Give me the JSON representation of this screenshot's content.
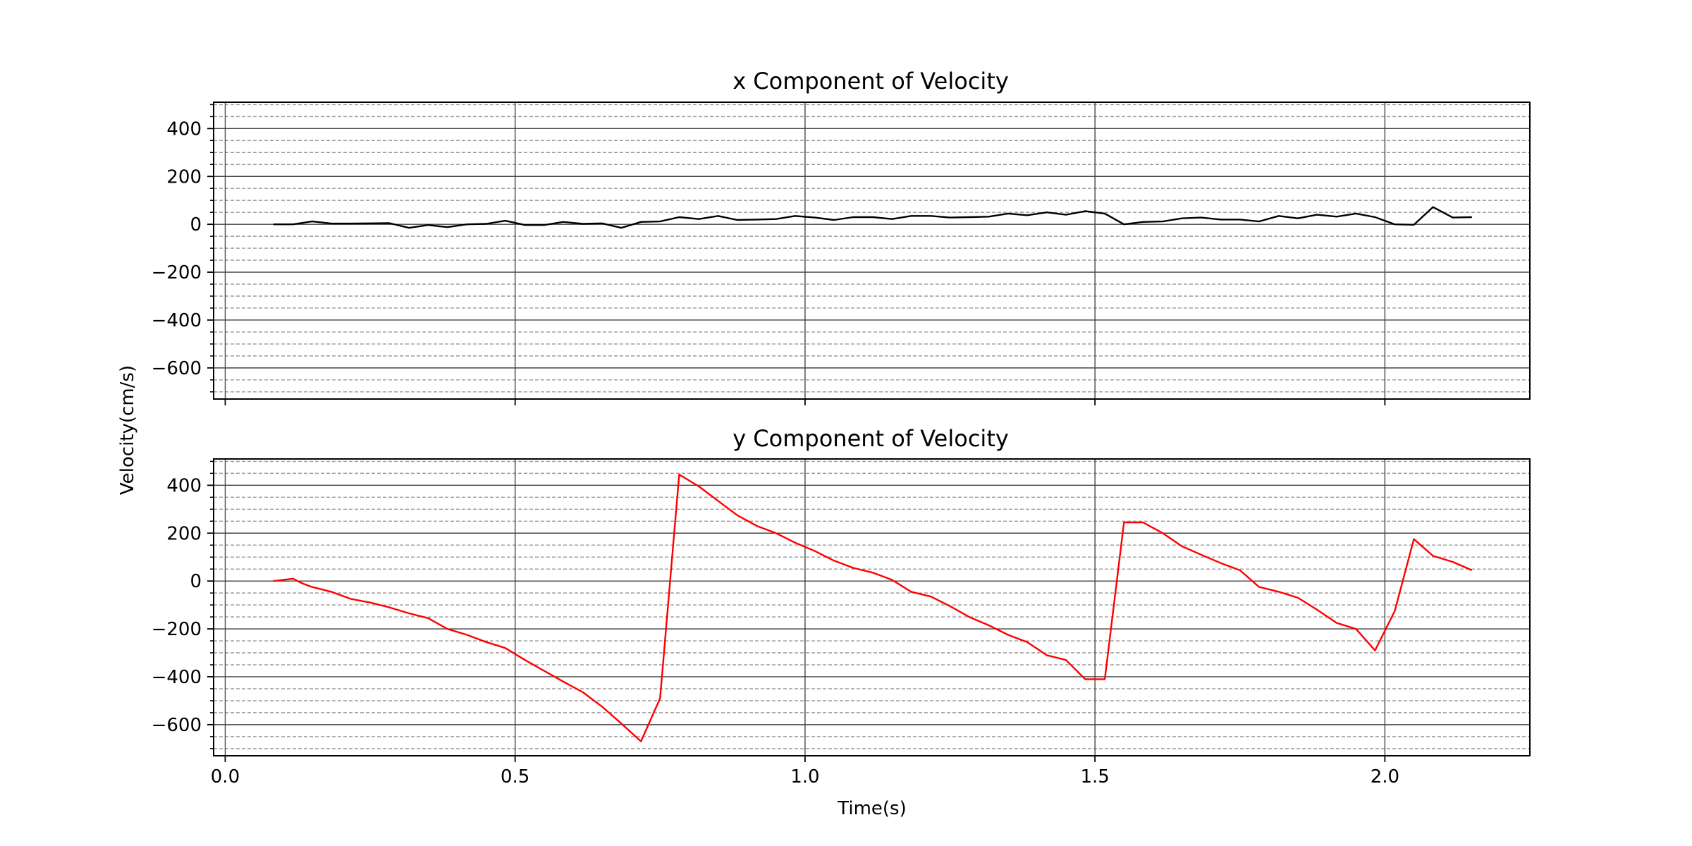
{
  "figure": {
    "ylabel": "Velocity(cm/s)",
    "xlabel": "Time(s)"
  },
  "chart_data": [
    {
      "type": "line",
      "title": "x Component of Velocity",
      "xlim": [
        -0.02,
        2.25
      ],
      "ylim": [
        -730,
        510
      ],
      "x_ticks": [
        0.0,
        0.5,
        1.0,
        1.5,
        2.0
      ],
      "x_tick_labels": [
        "0.0",
        "0.5",
        "1.0",
        "1.5",
        "2.0"
      ],
      "x_tick_labels_visible": false,
      "y_ticks": [
        400,
        200,
        0,
        -200,
        -400,
        -600
      ],
      "y_tick_labels": [
        "400",
        "200",
        "0",
        "−200",
        "−400",
        "−600"
      ],
      "grid": true,
      "series": [
        {
          "color": "#000000",
          "x": [
            0.083,
            0.117,
            0.15,
            0.183,
            0.217,
            0.25,
            0.283,
            0.317,
            0.35,
            0.383,
            0.417,
            0.45,
            0.483,
            0.517,
            0.55,
            0.583,
            0.617,
            0.65,
            0.683,
            0.717,
            0.75,
            0.783,
            0.817,
            0.85,
            0.883,
            0.917,
            0.95,
            0.983,
            1.017,
            1.05,
            1.083,
            1.117,
            1.15,
            1.183,
            1.217,
            1.25,
            1.283,
            1.317,
            1.35,
            1.383,
            1.417,
            1.45,
            1.483,
            1.517,
            1.55,
            1.583,
            1.617,
            1.65,
            1.683,
            1.717,
            1.75,
            1.783,
            1.817,
            1.85,
            1.883,
            1.917,
            1.95,
            1.983,
            2.017,
            2.05,
            2.083,
            2.117,
            2.15
          ],
          "values": [
            0,
            0,
            12,
            3,
            3,
            4,
            5,
            -15,
            -3,
            -12,
            0,
            2,
            15,
            -3,
            -3,
            10,
            2,
            4,
            -15,
            10,
            12,
            30,
            22,
            35,
            18,
            20,
            22,
            35,
            28,
            18,
            30,
            30,
            22,
            35,
            35,
            28,
            30,
            32,
            45,
            38,
            50,
            40,
            55,
            45,
            0,
            10,
            12,
            25,
            28,
            20,
            20,
            12,
            35,
            25,
            40,
            32,
            45,
            30,
            0,
            -2,
            72,
            28,
            30
          ]
        }
      ]
    },
    {
      "type": "line",
      "title": "y Component of Velocity",
      "xlim": [
        -0.02,
        2.25
      ],
      "ylim": [
        -730,
        510
      ],
      "x_ticks": [
        0.0,
        0.5,
        1.0,
        1.5,
        2.0
      ],
      "x_tick_labels": [
        "0.0",
        "0.5",
        "1.0",
        "1.5",
        "2.0"
      ],
      "x_tick_labels_visible": true,
      "y_ticks": [
        400,
        200,
        0,
        -200,
        -400,
        -600
      ],
      "y_tick_labels": [
        "400",
        "200",
        "0",
        "−200",
        "−400",
        "−600"
      ],
      "grid": true,
      "series": [
        {
          "color": "#ff0000",
          "x": [
            0.083,
            0.117,
            0.133,
            0.15,
            0.183,
            0.217,
            0.25,
            0.283,
            0.317,
            0.35,
            0.383,
            0.417,
            0.45,
            0.483,
            0.517,
            0.55,
            0.583,
            0.617,
            0.65,
            0.683,
            0.717,
            0.75,
            0.783,
            0.817,
            0.85,
            0.883,
            0.917,
            0.95,
            0.983,
            1.017,
            1.05,
            1.083,
            1.117,
            1.15,
            1.183,
            1.217,
            1.25,
            1.283,
            1.317,
            1.35,
            1.383,
            1.417,
            1.45,
            1.483,
            1.517,
            1.55,
            1.583,
            1.617,
            1.65,
            1.683,
            1.717,
            1.75,
            1.783,
            1.817,
            1.85,
            1.883,
            1.917,
            1.95,
            1.983,
            2.017,
            2.05,
            2.083,
            2.117,
            2.15
          ],
          "values": [
            0,
            10,
            -10,
            -25,
            -45,
            -75,
            -90,
            -110,
            -135,
            -155,
            -200,
            -225,
            -255,
            -280,
            -330,
            -375,
            -420,
            -465,
            -525,
            -595,
            -670,
            -490,
            445,
            395,
            335,
            275,
            230,
            200,
            160,
            125,
            85,
            55,
            35,
            5,
            -45,
            -65,
            -105,
            -150,
            -185,
            -225,
            -255,
            -310,
            -330,
            -410,
            -410,
            245,
            245,
            200,
            145,
            110,
            75,
            45,
            -25,
            -45,
            -70,
            -120,
            -175,
            -200,
            -290,
            -125,
            175,
            105,
            80,
            45
          ]
        }
      ]
    }
  ]
}
